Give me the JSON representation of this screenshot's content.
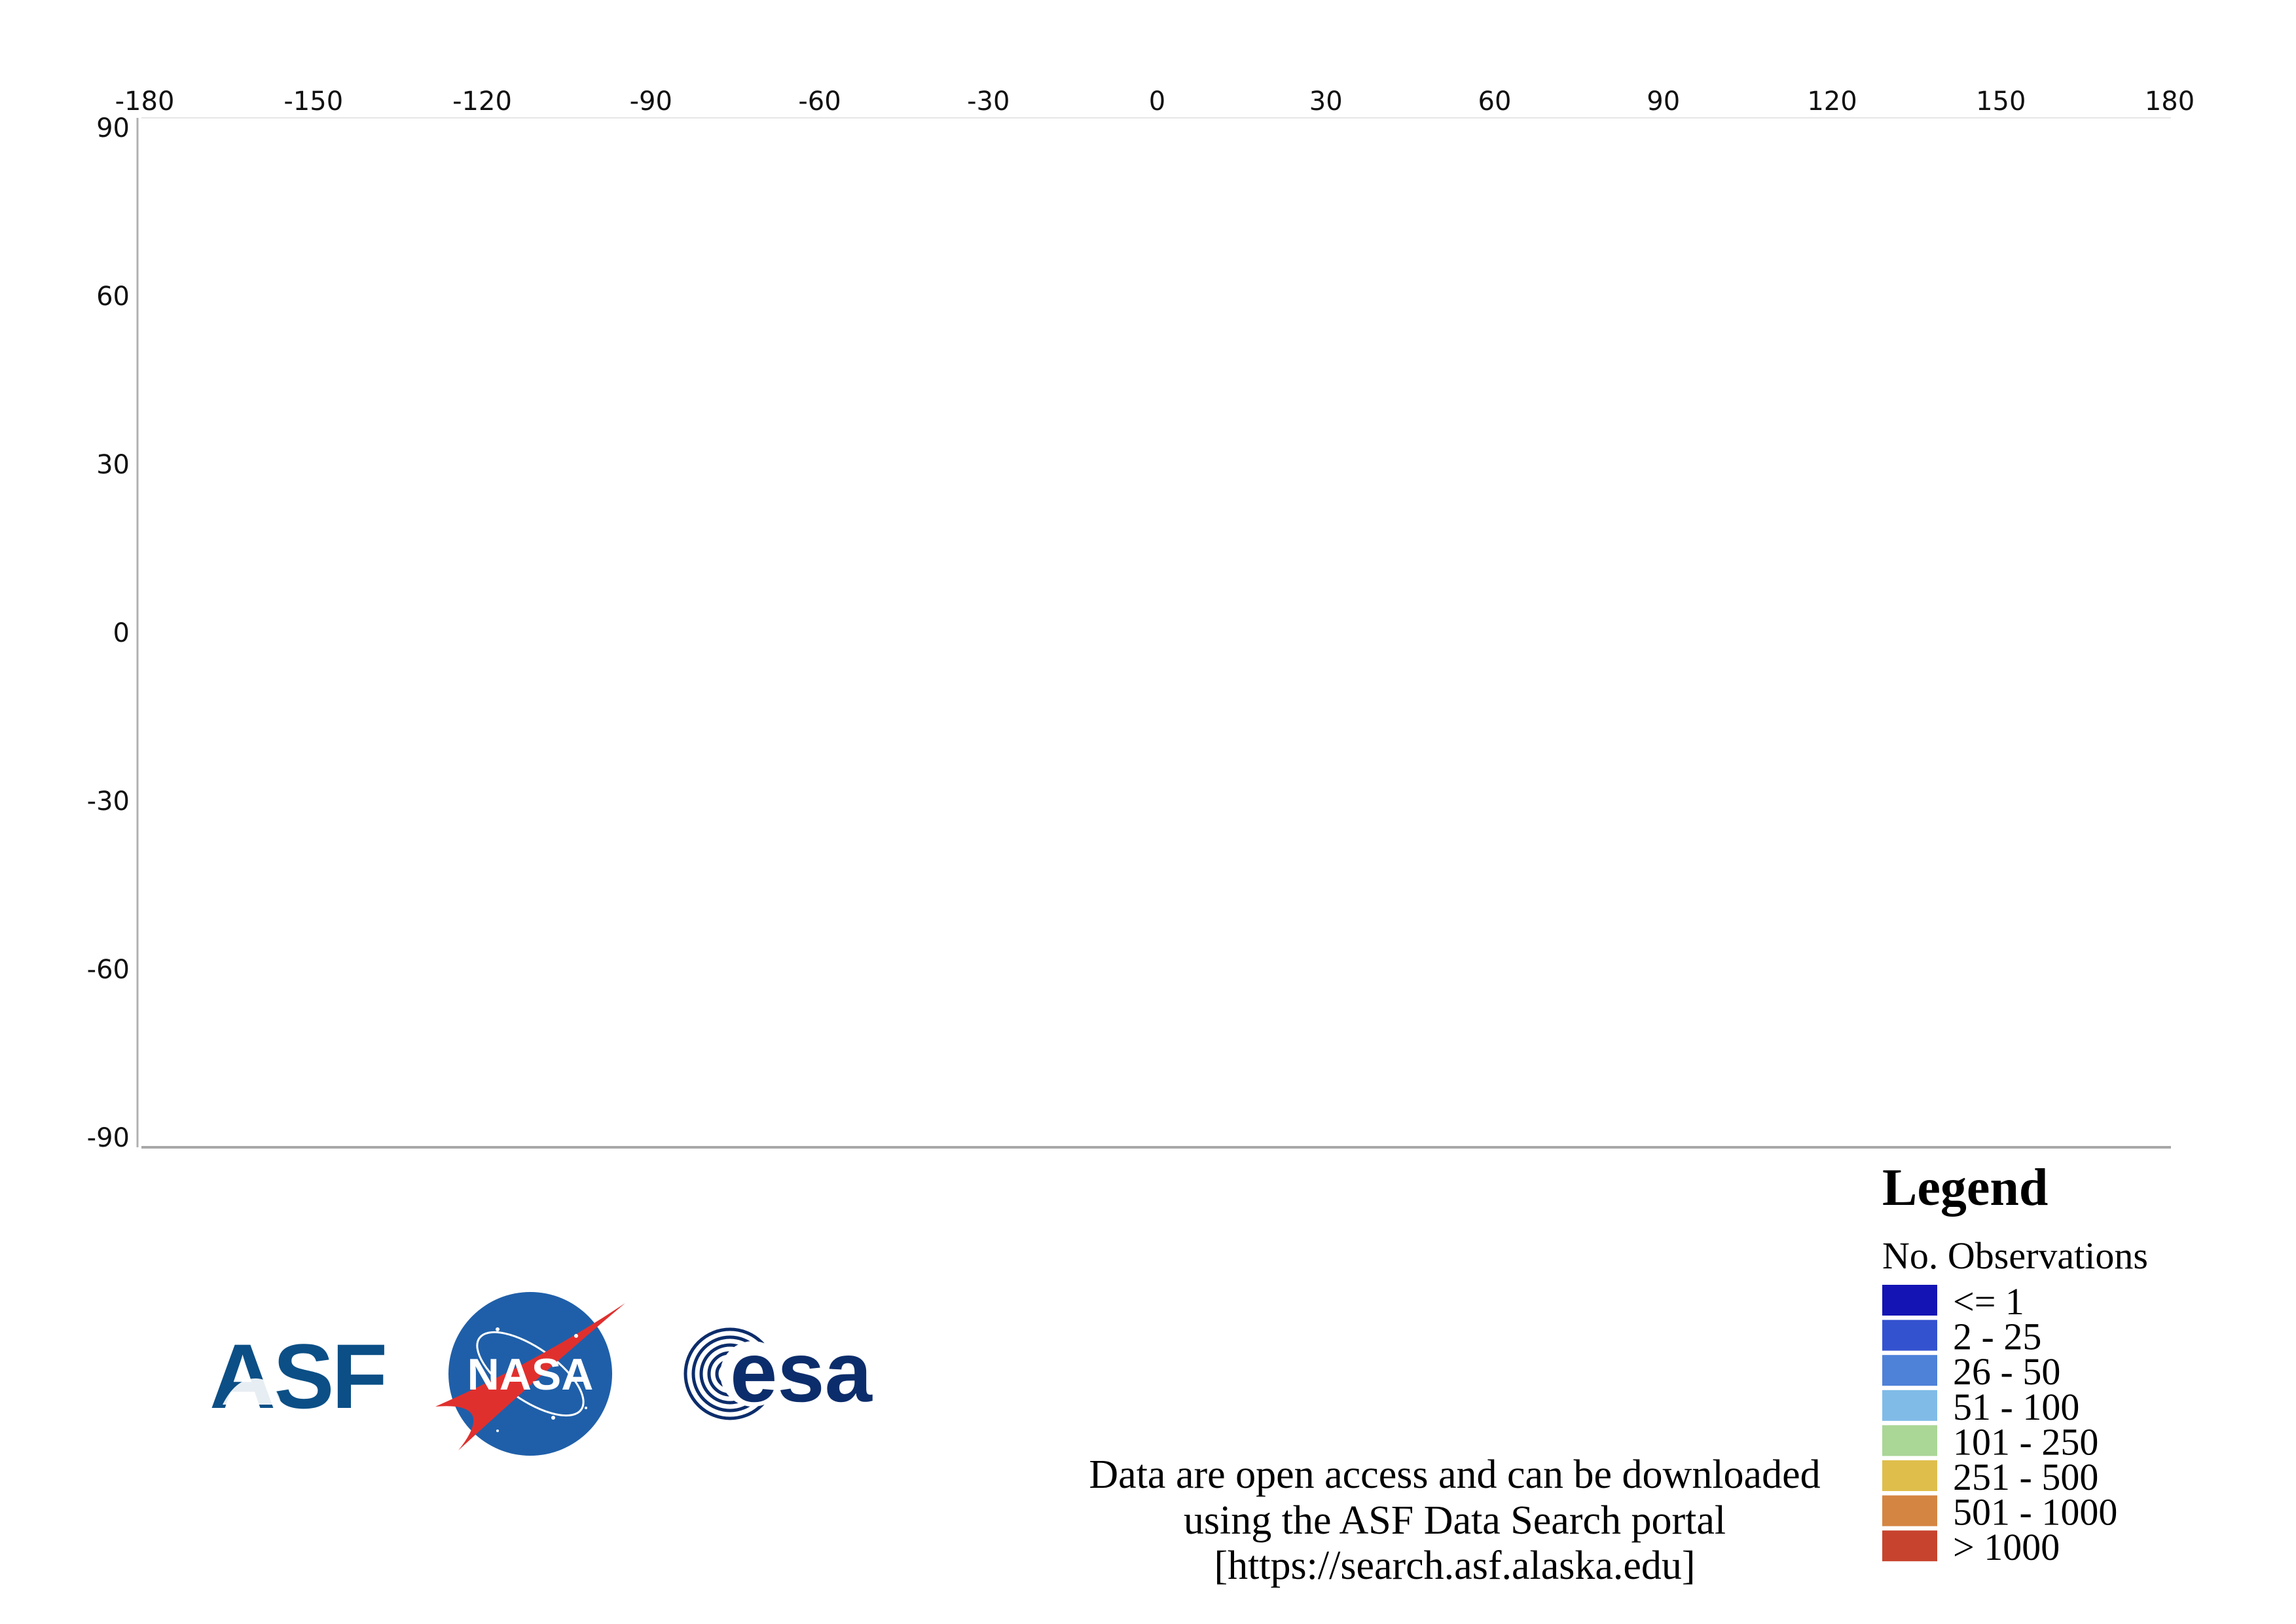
{
  "map": {
    "lon_ticks": [
      -180,
      -150,
      -120,
      -90,
      -60,
      -30,
      0,
      30,
      60,
      90,
      120,
      150,
      180
    ],
    "lat_ticks": [
      90,
      60,
      30,
      0,
      -30,
      -60,
      -90
    ],
    "lon_range": [
      -180,
      180
    ],
    "lat_range": [
      -90,
      90
    ]
  },
  "legend": {
    "title": "Legend",
    "subtitle": "No. Observations",
    "items": [
      {
        "label": "<= 1",
        "color": "#1414b4"
      },
      {
        "label": "2 - 25",
        "color": "#3352d0"
      },
      {
        "label": "26 - 50",
        "color": "#4e81d8"
      },
      {
        "label": "51 - 100",
        "color": "#80bbe8"
      },
      {
        "label": "101 - 250",
        "color": "#aad696"
      },
      {
        "label": "251 - 500",
        "color": "#dfbe4c"
      },
      {
        "label": "501 - 1000",
        "color": "#d48542"
      },
      {
        "label": "> 1000",
        "color": "#c7432d"
      }
    ]
  },
  "logos": {
    "asf": "ASF",
    "nasa": "NASA",
    "esa": "esa"
  },
  "footer": {
    "lines": [
      "Data are open access and can be downloaded",
      "using the ASF Data Search portal",
      "[https://search.asf.alaska.edu]"
    ]
  }
}
